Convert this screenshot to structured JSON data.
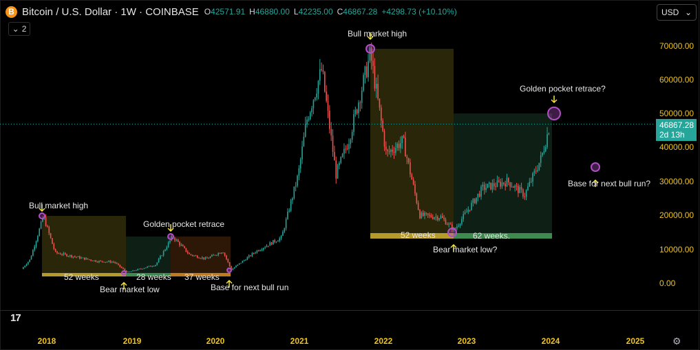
{
  "header": {
    "symbol_icon": "B",
    "title": "Bitcoin / U.S. Dollar · 1W · COINBASE",
    "ohlc": [
      {
        "key": "O",
        "value": "42571.91"
      },
      {
        "key": "H",
        "value": "46880.00"
      },
      {
        "key": "L",
        "value": "42235.00"
      },
      {
        "key": "C",
        "value": "46867.28"
      }
    ],
    "change": "+4298.73 (+10.10%)"
  },
  "indicator_toggle": {
    "icon": "chevron-down-icon",
    "count": "2"
  },
  "currency": {
    "label": "USD",
    "icon": "chevron-down-icon"
  },
  "price_axis": {
    "labels": [
      "70000.00",
      "60000.00",
      "50000.00",
      "40000.00",
      "30000.00",
      "20000.00",
      "10000.00",
      "0.00"
    ]
  },
  "current_price": {
    "value": "46867.28",
    "countdown": "2d 13h",
    "color": "#26a69a"
  },
  "time_axis": {
    "labels": [
      "2018",
      "2019",
      "2020",
      "2021",
      "2022",
      "2023",
      "2024",
      "2025"
    ]
  },
  "annotations": {
    "bull_high_1": "Bull market high",
    "golden_pocket_1": "Golden pocket retrace",
    "bear_low_1": "Bear market low",
    "base_next_1": "Base for next bull run",
    "bull_high_2": "Bull market high",
    "golden_pocket_2": "Golden pocket retrace?",
    "bear_low_2": "Bear market low?",
    "base_next_2": "Base for next bull run?"
  },
  "durations": {
    "d1": "52 weeks",
    "d2": "28 weeks",
    "d3": "37 weeks",
    "d4": "52 weeks",
    "d5": "62 weeks."
  },
  "colors": {
    "up": "#26a69a",
    "down": "#ef5350",
    "axis_text": "#f0c419",
    "annotation_arrow": "#f5e642",
    "marker": "#b14fc5"
  },
  "chart_data": {
    "type": "candlestick",
    "title": "Bitcoin / U.S. Dollar · 1W · COINBASE",
    "x_ticks": [
      "2018",
      "2019",
      "2020",
      "2021",
      "2022",
      "2023",
      "2024",
      "2025"
    ],
    "y_ticks": [
      0,
      10000,
      20000,
      30000,
      40000,
      50000,
      60000,
      70000
    ],
    "ylim": [
      0,
      70000
    ],
    "grid": false,
    "anchors": [
      {
        "date": "2017.70",
        "price": 4200
      },
      {
        "date": "2017.80",
        "price": 7000
      },
      {
        "date": "2017.96",
        "price": 19700
      },
      {
        "date": "2018.10",
        "price": 9000
      },
      {
        "date": "2018.40",
        "price": 7500
      },
      {
        "date": "2018.60",
        "price": 6500
      },
      {
        "date": "2018.80",
        "price": 6300
      },
      {
        "date": "2018.96",
        "price": 3200
      },
      {
        "date": "2019.30",
        "price": 5500
      },
      {
        "date": "2019.50",
        "price": 13800
      },
      {
        "date": "2019.70",
        "price": 8500
      },
      {
        "date": "2019.90",
        "price": 7200
      },
      {
        "date": "2020.10",
        "price": 9500
      },
      {
        "date": "2020.20",
        "price": 4000
      },
      {
        "date": "2020.50",
        "price": 9500
      },
      {
        "date": "2020.80",
        "price": 13500
      },
      {
        "date": "2021.00",
        "price": 32000
      },
      {
        "date": "2021.10",
        "price": 48000
      },
      {
        "date": "2021.28",
        "price": 63000
      },
      {
        "date": "2021.45",
        "price": 32000
      },
      {
        "date": "2021.60",
        "price": 42000
      },
      {
        "date": "2021.86",
        "price": 67500
      },
      {
        "date": "2022.05",
        "price": 38000
      },
      {
        "date": "2022.25",
        "price": 42000
      },
      {
        "date": "2022.45",
        "price": 20000
      },
      {
        "date": "2022.70",
        "price": 19500
      },
      {
        "date": "2022.86",
        "price": 15700
      },
      {
        "date": "2023.20",
        "price": 28000
      },
      {
        "date": "2023.50",
        "price": 30000
      },
      {
        "date": "2023.70",
        "price": 26000
      },
      {
        "date": "2023.90",
        "price": 37000
      },
      {
        "date": "2024.00",
        "price": 46800
      }
    ]
  }
}
